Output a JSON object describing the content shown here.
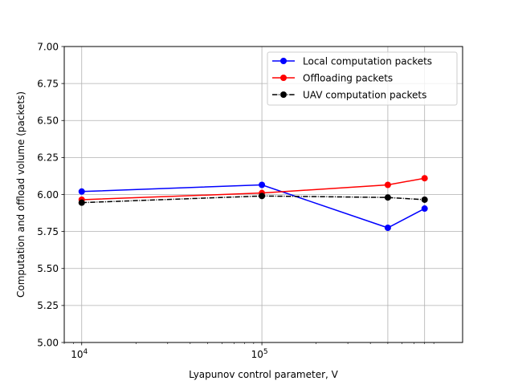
{
  "chart_data": {
    "type": "line",
    "title": "",
    "xlabel": "Lyapunov control parameter, V",
    "ylabel": "Computation and offload volume (packets)",
    "xscale": "log",
    "xlim": [
      8000,
      1300000
    ],
    "ylim": [
      5.0,
      7.0
    ],
    "grid": true,
    "legend_position": "upper right",
    "x": [
      10000,
      100000,
      500000,
      800000
    ],
    "x_tick_values": [
      10000,
      100000
    ],
    "x_tick_labels": [
      {
        "base": "10",
        "exp": "4"
      },
      {
        "base": "10",
        "exp": "5"
      }
    ],
    "y_tick_values": [
      5.0,
      5.25,
      5.5,
      5.75,
      6.0,
      6.25,
      6.5,
      6.75,
      7.0
    ],
    "y_tick_labels": [
      "5.00",
      "5.25",
      "5.50",
      "5.75",
      "6.00",
      "6.25",
      "6.50",
      "6.75",
      "7.00"
    ],
    "series": [
      {
        "name": "Local computation packets",
        "color": "#0000ff",
        "linestyle": "solid",
        "marker": "circle",
        "values": [
          6.02,
          6.065,
          5.775,
          5.905
        ]
      },
      {
        "name": "Offloading packets",
        "color": "#ff0000",
        "linestyle": "solid",
        "marker": "circle",
        "values": [
          5.965,
          6.01,
          6.065,
          6.11
        ]
      },
      {
        "name": "UAV computation packets",
        "color": "#000000",
        "linestyle": "dashdot",
        "marker": "circle",
        "values": [
          5.945,
          5.99,
          5.98,
          5.965
        ]
      }
    ]
  }
}
